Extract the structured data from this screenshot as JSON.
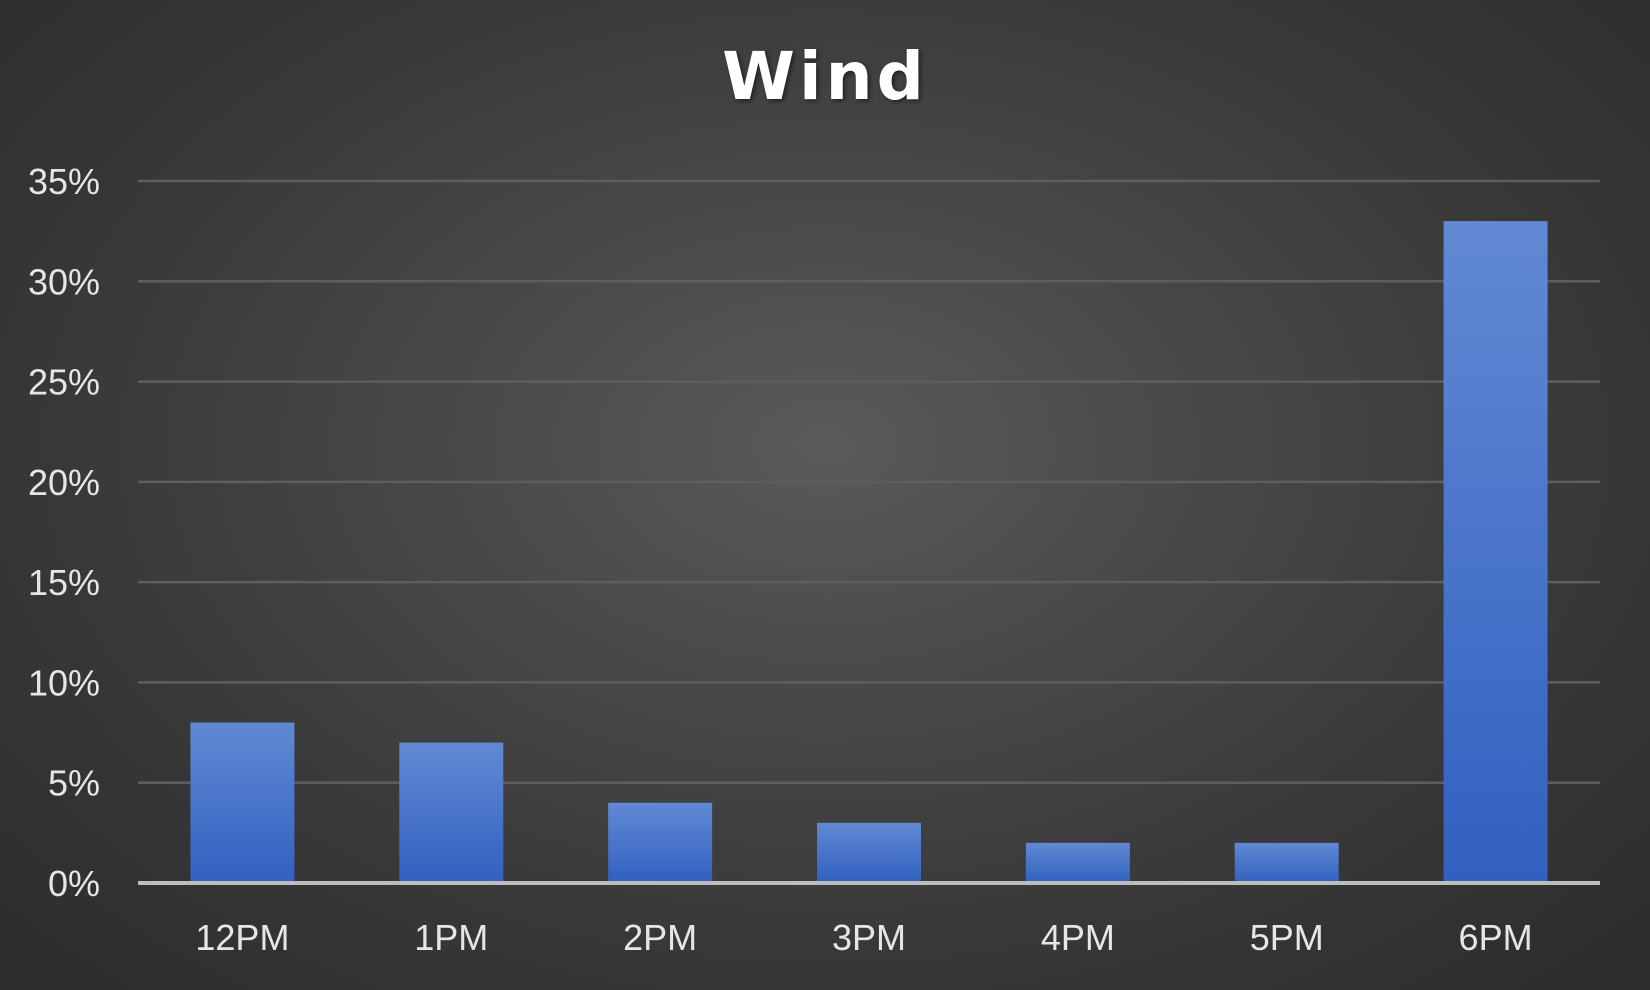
{
  "chart_data": {
    "type": "bar",
    "title": "Wind",
    "xlabel": "",
    "ylabel": "",
    "categories": [
      "12PM",
      "1PM",
      "2PM",
      "3PM",
      "4PM",
      "5PM",
      "6PM"
    ],
    "values": [
      8,
      7,
      4,
      3,
      2,
      2,
      33
    ],
    "value_unit": "%",
    "ylim": [
      0,
      35
    ],
    "yticks": [
      0,
      5,
      10,
      15,
      20,
      25,
      30,
      35
    ],
    "ytick_labels": [
      "0%",
      "5%",
      "10%",
      "15%",
      "20%",
      "25%",
      "30%",
      "35%"
    ],
    "grid": true,
    "legend": "none",
    "bar_color": "#4472C4",
    "background_color": "#404040"
  }
}
